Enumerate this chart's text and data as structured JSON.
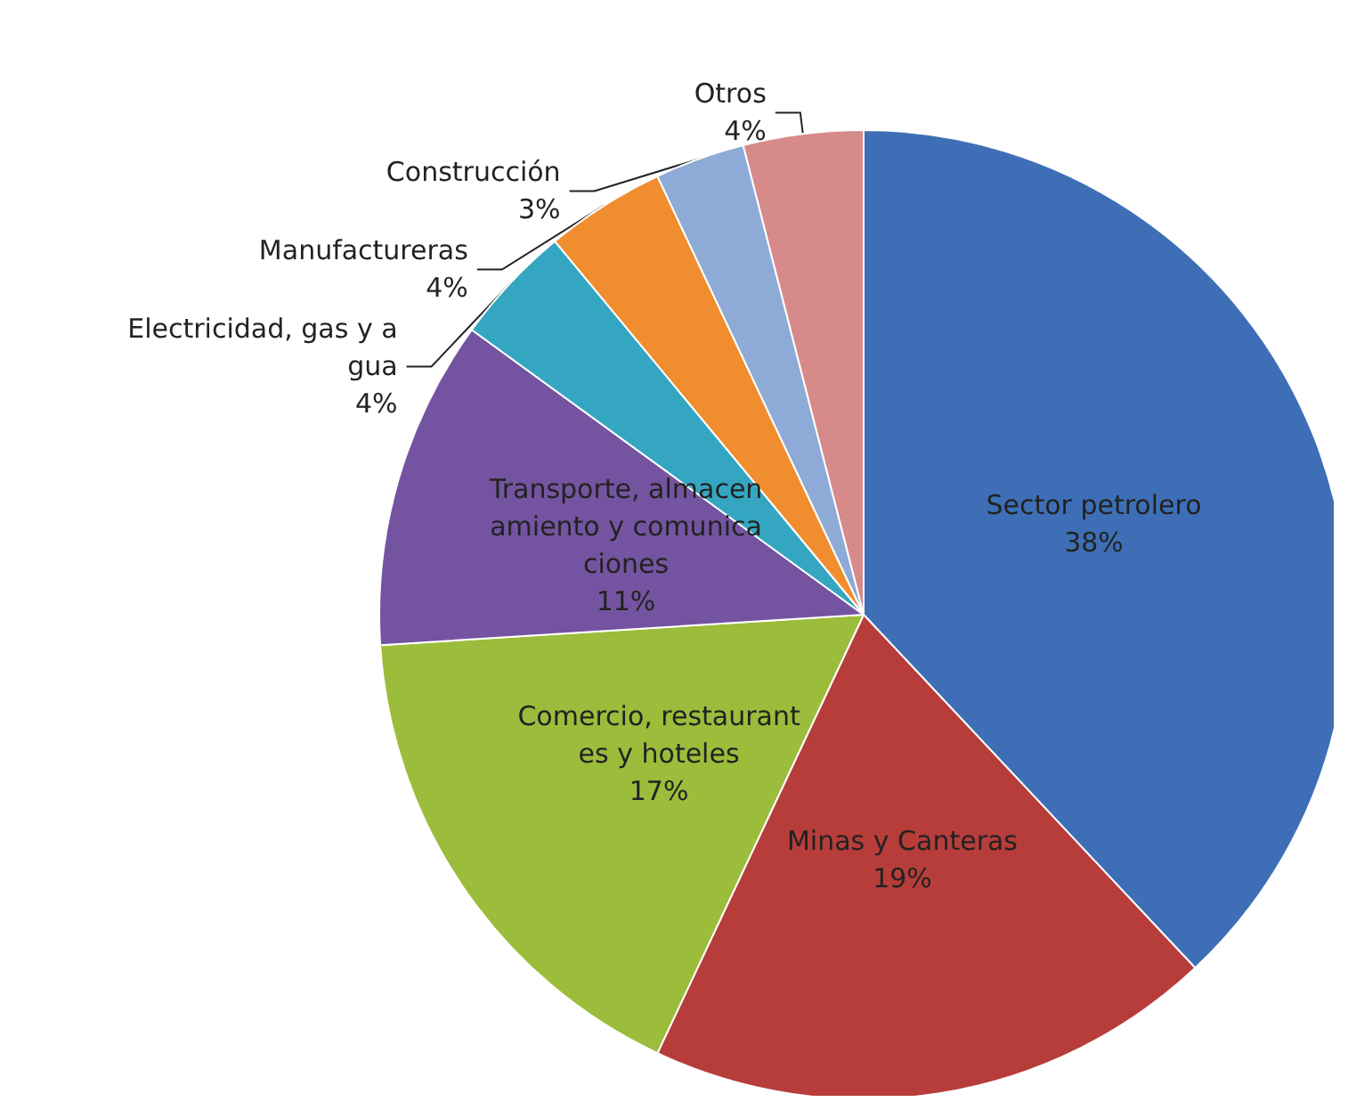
{
  "chart_data": {
    "type": "pie",
    "categories": [
      "Sector petrolero",
      "Minas y Canteras",
      "Comercio, restaurantes y hoteles",
      "Transporte, almacenamiento y comunicaciones",
      "Electricidad, gas y agua",
      "Manufactureras",
      "Construcción",
      "Otros"
    ],
    "values": [
      38,
      19,
      17,
      11,
      4,
      4,
      3,
      4
    ],
    "colors": [
      "#3e6fb6",
      "#b73d3a",
      "#9cbc3c",
      "#7454a0",
      "#35a6c1",
      "#f08d2f",
      "#8eaad7",
      "#d68a8a"
    ],
    "value_labels": [
      "38%",
      "19%",
      "17%",
      "11%",
      "4%",
      "4%",
      "3%",
      "4%"
    ],
    "legend": false
  }
}
